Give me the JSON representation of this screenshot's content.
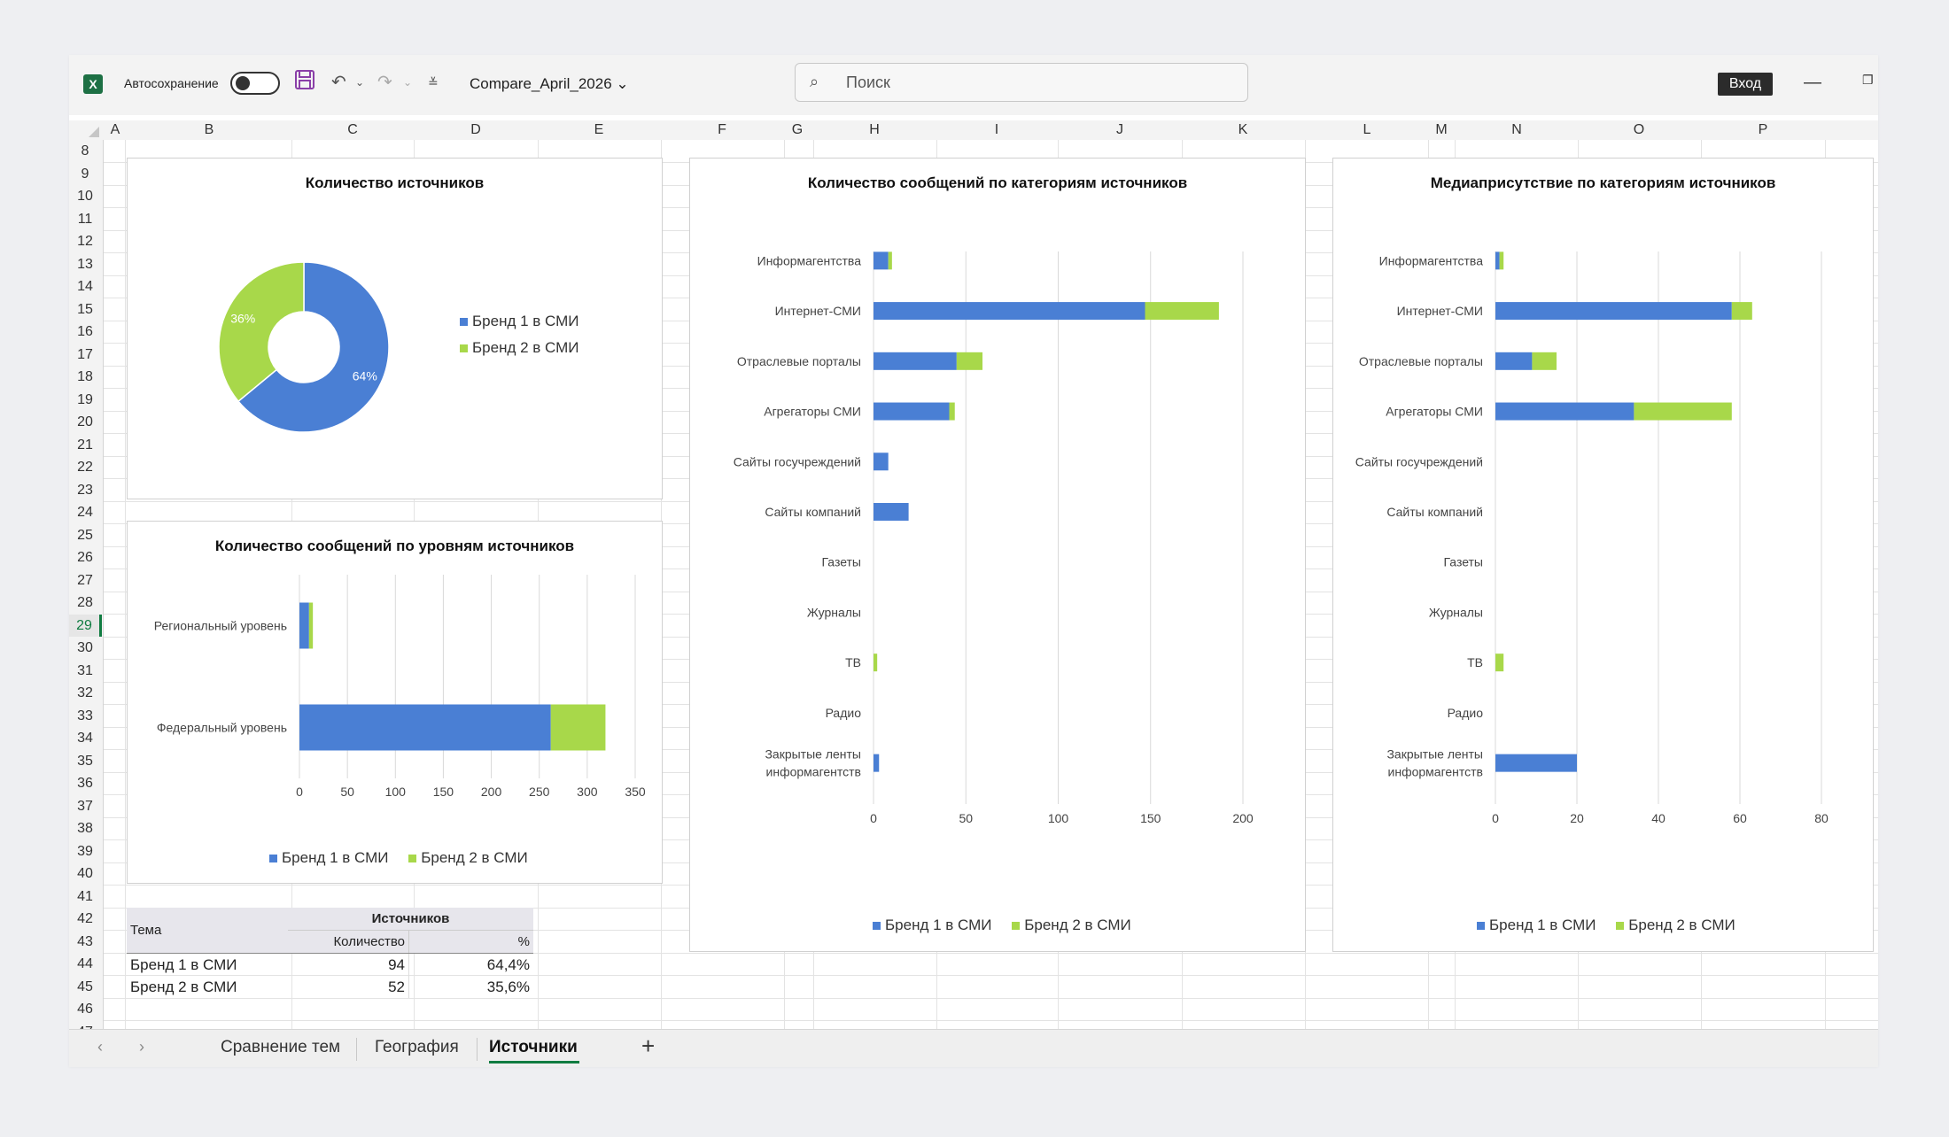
{
  "titlebar": {
    "app_logo_letter": "X",
    "autosave_label": "Автосохранение",
    "filename": "Compare_April_2026",
    "search_placeholder": "Поиск",
    "signin_label": "Вход"
  },
  "grid": {
    "columns": [
      "A",
      "B",
      "C",
      "D",
      "E",
      "F",
      "G",
      "H",
      "I",
      "J",
      "K",
      "L",
      "M",
      "N",
      "O",
      "P"
    ],
    "rows": [
      "8",
      "9",
      "10",
      "11",
      "12",
      "13",
      "14",
      "15",
      "16",
      "17",
      "18",
      "19",
      "20",
      "21",
      "22",
      "23",
      "24",
      "25",
      "26",
      "27",
      "28",
      "29",
      "30",
      "31",
      "32",
      "33",
      "34",
      "35",
      "36",
      "37",
      "38",
      "39",
      "40",
      "41",
      "42",
      "43",
      "44",
      "45",
      "46",
      "47"
    ],
    "selected_row": "29"
  },
  "colors": {
    "brand1": "#4a7fd4",
    "brand2": "#a8d84a",
    "excel_green": "#107c41"
  },
  "legend": {
    "brand1": "Бренд 1 в СМИ",
    "brand2": "Бренд 2 в СМИ"
  },
  "chart_data": [
    {
      "type": "pie",
      "title": "Количество источников",
      "categories": [
        "Бренд 1 в СМИ",
        "Бренд 2 в СМИ"
      ],
      "values": [
        64,
        36
      ],
      "data_labels": [
        "64%",
        "36%"
      ],
      "legend_position": "right"
    },
    {
      "type": "bar",
      "title": "Количество сообщений по уровням источников",
      "categories": [
        "Региональный уровень",
        "Федеральный уровень"
      ],
      "series": [
        {
          "name": "Бренд 1 в СМИ",
          "values": [
            10,
            262
          ]
        },
        {
          "name": "Бренд 2 в СМИ",
          "values": [
            4,
            57
          ]
        }
      ],
      "xlim": [
        0,
        350
      ],
      "ticks": [
        "0",
        "50",
        "100",
        "150",
        "200",
        "250",
        "300",
        "350"
      ],
      "legend_position": "bottom"
    },
    {
      "type": "bar",
      "title": "Количество сообщений по категориям источников",
      "categories": [
        "Информагентства",
        "Интернет-СМИ",
        "Отраслевые порталы",
        "Агрегаторы СМИ",
        "Сайты госучреждений",
        "Сайты компаний",
        "Газеты",
        "Журналы",
        "ТВ",
        "Радио",
        "Закрытые ленты информагентств"
      ],
      "series": [
        {
          "name": "Бренд 1 в СМИ",
          "values": [
            8,
            147,
            45,
            41,
            8,
            19,
            0,
            0,
            0,
            0,
            3
          ]
        },
        {
          "name": "Бренд 2 в СМИ",
          "values": [
            2,
            40,
            14,
            3,
            0,
            0,
            0,
            0,
            2,
            0,
            0
          ]
        }
      ],
      "xlim": [
        0,
        200
      ],
      "ticks": [
        "0",
        "50",
        "100",
        "150",
        "200"
      ],
      "legend_position": "bottom"
    },
    {
      "type": "bar",
      "title": "Медиаприсутствие по категориям источников",
      "categories": [
        "Информагентства",
        "Интернет-СМИ",
        "Отраслевые порталы",
        "Агрегаторы СМИ",
        "Сайты госучреждений",
        "Сайты компаний",
        "Газеты",
        "Журналы",
        "ТВ",
        "Радио",
        "Закрытые ленты информагентств"
      ],
      "series": [
        {
          "name": "Бренд 1 в СМИ",
          "values": [
            1,
            58,
            9,
            34,
            0,
            0,
            0,
            0,
            0,
            0,
            20
          ]
        },
        {
          "name": "Бренд 2 в СМИ",
          "values": [
            1,
            5,
            6,
            24,
            0,
            0,
            0,
            0,
            2,
            0,
            0
          ]
        }
      ],
      "xlim": [
        0,
        80
      ],
      "ticks": [
        "0",
        "20",
        "40",
        "60",
        "80"
      ],
      "legend_position": "bottom"
    }
  ],
  "table": {
    "header_topic": "Тема",
    "header_sources": "Источников",
    "header_count": "Количество",
    "header_percent": "%",
    "rows": [
      {
        "topic": "Бренд 1 в СМИ",
        "count": "94",
        "percent": "64,4%"
      },
      {
        "topic": "Бренд 2 в СМИ",
        "count": "52",
        "percent": "35,6%"
      }
    ]
  },
  "tabs": {
    "items": [
      "Сравнение тем",
      "География",
      "Источники"
    ],
    "active": "Источники",
    "add_label": "+"
  }
}
